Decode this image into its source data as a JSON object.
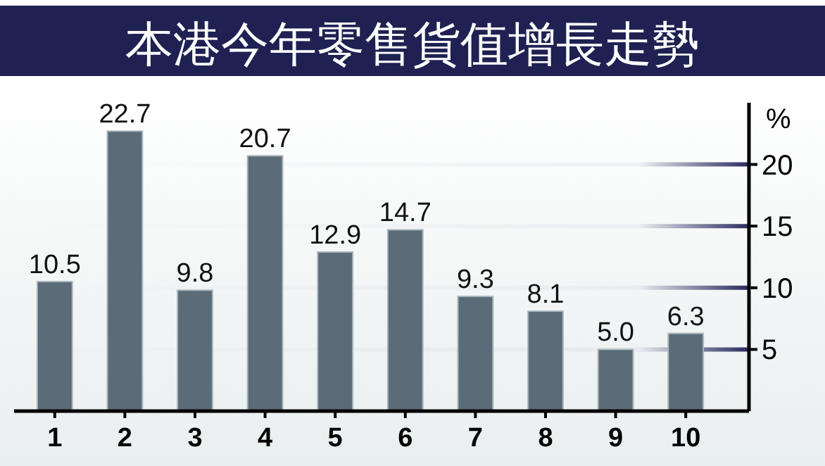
{
  "chart_data": {
    "type": "bar",
    "title": "本港今年零售貨值增長走勢",
    "ylabel": "%",
    "categories": [
      "1",
      "2",
      "3",
      "4",
      "5",
      "6",
      "7",
      "8",
      "9",
      "10"
    ],
    "values": [
      10.5,
      22.7,
      9.8,
      20.7,
      12.9,
      14.7,
      9.3,
      8.1,
      5.0,
      6.3
    ],
    "value_labels": [
      "10.5",
      "22.7",
      "9.8",
      "20.7",
      "12.9",
      "14.7",
      "9.3",
      "8.1",
      "5.0",
      "6.3"
    ],
    "color": "#5b6c78",
    "ylim": [
      0,
      25
    ],
    "yticks": [
      5,
      10,
      15,
      20
    ],
    "grid": "y"
  }
}
